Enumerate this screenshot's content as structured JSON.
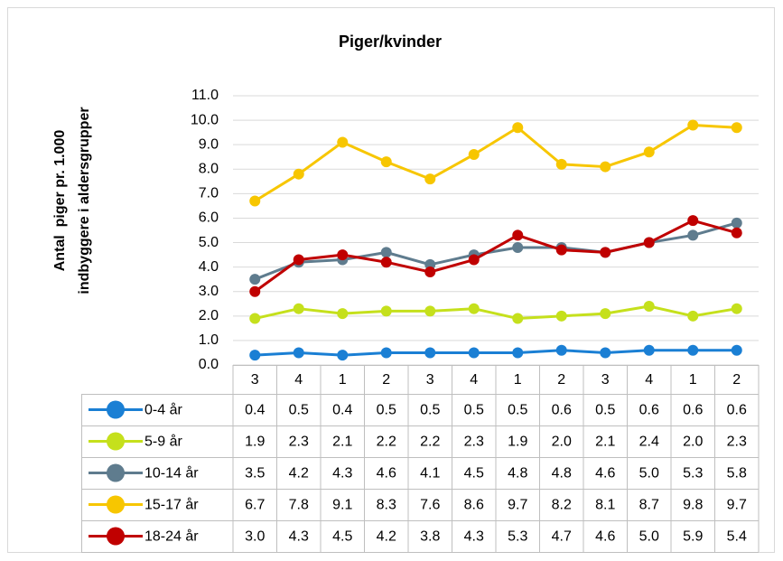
{
  "chart_data": {
    "type": "line",
    "title": "Piger/kvinder",
    "y_label": [
      "Antal  piger pr. 1.000",
      "indbyggere i aldersgrupper"
    ],
    "categories": [
      "3",
      "4",
      "1",
      "2",
      "3",
      "4",
      "1",
      "2",
      "3",
      "4",
      "1",
      "2"
    ],
    "ylim": [
      0,
      11
    ],
    "yticks": [
      {
        "value": 0,
        "label": "0.0"
      },
      {
        "value": 1,
        "label": "1.0"
      },
      {
        "value": 2,
        "label": "2.0"
      },
      {
        "value": 3,
        "label": "3.0"
      },
      {
        "value": 4,
        "label": "4.0"
      },
      {
        "value": 5,
        "label": "5.0"
      },
      {
        "value": 6,
        "label": "6.0"
      },
      {
        "value": 7,
        "label": "7.0"
      },
      {
        "value": 8,
        "label": "8.0"
      },
      {
        "value": 9,
        "label": "9.0"
      },
      {
        "value": 10,
        "label": "10.0"
      },
      {
        "value": 11,
        "label": "11.0"
      }
    ],
    "grid": true,
    "series": [
      {
        "name": "0-4 år",
        "color": "#1a7fd4",
        "values": [
          0.4,
          0.5,
          0.4,
          0.5,
          0.5,
          0.5,
          0.5,
          0.6,
          0.5,
          0.6,
          0.6,
          0.6
        ],
        "value_labels": [
          "0.4",
          "0.5",
          "0.4",
          "0.5",
          "0.5",
          "0.5",
          "0.5",
          "0.6",
          "0.5",
          "0.6",
          "0.6",
          "0.6"
        ]
      },
      {
        "name": "5-9 år",
        "color": "#c5e01c",
        "values": [
          1.9,
          2.3,
          2.1,
          2.2,
          2.2,
          2.3,
          1.9,
          2.0,
          2.1,
          2.4,
          2.0,
          2.3
        ],
        "value_labels": [
          "1.9",
          "2.3",
          "2.1",
          "2.2",
          "2.2",
          "2.3",
          "1.9",
          "2.0",
          "2.1",
          "2.4",
          "2.0",
          "2.3"
        ]
      },
      {
        "name": "10-14 år",
        "color": "#5f7c8e",
        "values": [
          3.5,
          4.2,
          4.3,
          4.6,
          4.1,
          4.5,
          4.8,
          4.8,
          4.6,
          5.0,
          5.3,
          5.8
        ],
        "value_labels": [
          "3.5",
          "4.2",
          "4.3",
          "4.6",
          "4.1",
          "4.5",
          "4.8",
          "4.8",
          "4.6",
          "5.0",
          "5.3",
          "5.8"
        ]
      },
      {
        "name": "15-17 år",
        "color": "#f7c600",
        "values": [
          6.7,
          7.8,
          9.1,
          8.3,
          7.6,
          8.6,
          9.7,
          8.2,
          8.1,
          8.7,
          9.8,
          9.7
        ],
        "value_labels": [
          "6.7",
          "7.8",
          "9.1",
          "8.3",
          "7.6",
          "8.6",
          "9.7",
          "8.2",
          "8.1",
          "8.7",
          "9.8",
          "9.7"
        ]
      },
      {
        "name": "18-24 år",
        "color": "#c00000",
        "values": [
          3.0,
          4.3,
          4.5,
          4.2,
          3.8,
          4.3,
          5.3,
          4.7,
          4.6,
          5.0,
          5.9,
          5.4
        ],
        "value_labels": [
          "3.0",
          "4.3",
          "4.5",
          "4.2",
          "3.8",
          "4.3",
          "5.3",
          "4.7",
          "4.6",
          "5.0",
          "5.9",
          "5.4"
        ]
      }
    ]
  }
}
